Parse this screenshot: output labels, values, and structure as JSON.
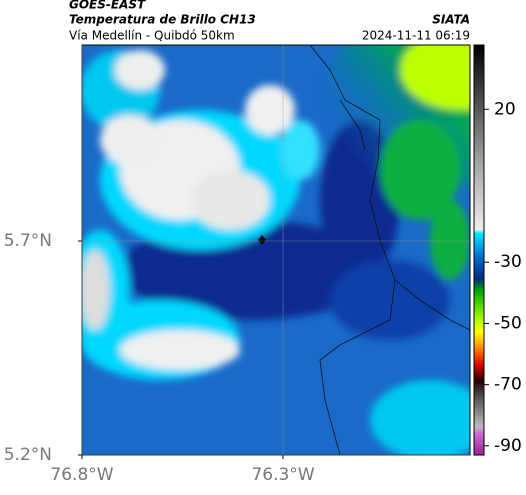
{
  "header": {
    "satellite": "GOES-EAST",
    "product": "Temperatura de Brillo CH13",
    "source": "SIATA",
    "route": "Vía Medellín - Quibdó 50km",
    "timestamp": "2024-11-11 06:19"
  },
  "map": {
    "xlim": [
      -76.8,
      -75.835
    ],
    "ylim": [
      5.2,
      6.158
    ],
    "xticks": [
      {
        "value": -76.8,
        "label": "76.8°W"
      },
      {
        "value": -76.3,
        "label": "76.3°W"
      }
    ],
    "yticks": [
      {
        "value": 5.2,
        "label": "5.2°N"
      },
      {
        "value": 5.7,
        "label": "5.7°N"
      }
    ]
  },
  "colorbar": {
    "range": [
      -93,
      41
    ],
    "ticks": [
      20,
      -30,
      -50,
      -70,
      -90
    ]
  }
}
